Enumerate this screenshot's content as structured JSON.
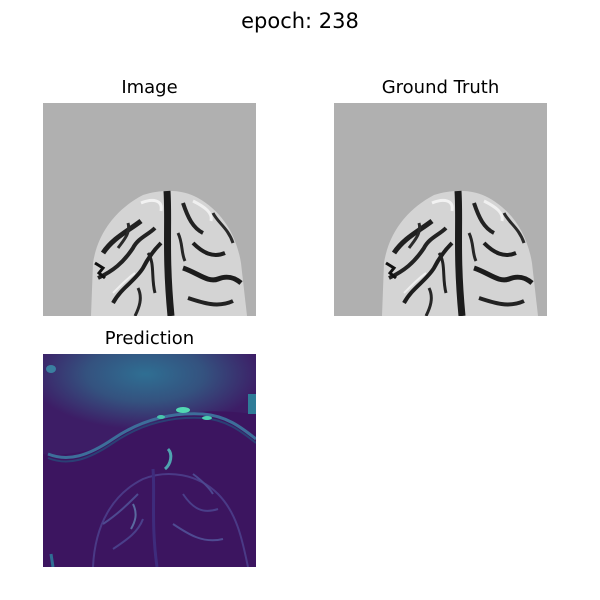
{
  "figure": {
    "title": "epoch: 238"
  },
  "panels": [
    {
      "title": "Image"
    },
    {
      "title": "Ground Truth"
    },
    {
      "title": "Prediction"
    }
  ],
  "colors": {
    "mri_background": "#b0b0b0",
    "brain_tissue": "#d9d9d9",
    "sulci_dark": "#1c1c1c",
    "prediction_base": "#3d0f5e",
    "prediction_band": "#2f5e8e",
    "prediction_highlight": "#4fd6b3"
  }
}
